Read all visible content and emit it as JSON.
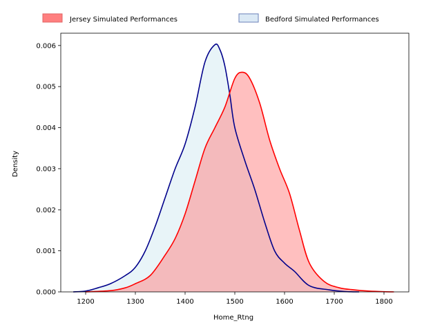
{
  "chart_data": {
    "type": "area",
    "xlabel": "Home_Rtng",
    "ylabel": "Density",
    "xlim": [
      1150,
      1850
    ],
    "ylim": [
      0,
      0.0063
    ],
    "xticks": [
      1200,
      1300,
      1400,
      1500,
      1600,
      1700,
      1800
    ],
    "yticks": [
      "0.000",
      "0.001",
      "0.002",
      "0.003",
      "0.004",
      "0.005",
      "0.006"
    ],
    "legend_position": "top, above plot",
    "grid": false,
    "series": [
      {
        "name": "Jersey Simulated Performances",
        "line_color": "#ff0000",
        "fill_color": "#ff7f7f",
        "x": [
          1200,
          1250,
          1280,
          1300,
          1330,
          1360,
          1380,
          1400,
          1420,
          1440,
          1460,
          1480,
          1500,
          1515,
          1530,
          1550,
          1570,
          1590,
          1610,
          1630,
          1650,
          1680,
          1710,
          1740,
          1770,
          1800,
          1820
        ],
        "y": [
          0,
          3e-05,
          0.0001,
          0.0002,
          0.0004,
          0.0009,
          0.0013,
          0.0019,
          0.0027,
          0.0035,
          0.004,
          0.0045,
          0.0052,
          0.00535,
          0.0052,
          0.0046,
          0.0037,
          0.003,
          0.0024,
          0.0015,
          0.0007,
          0.00025,
          0.0001,
          5e-05,
          2e-05,
          5e-06,
          0
        ]
      },
      {
        "name": "Bedford Simulated Performances",
        "line_color": "#00008b",
        "fill_color": "#add8e6",
        "x": [
          1175,
          1200,
          1225,
          1250,
          1280,
          1300,
          1320,
          1340,
          1360,
          1380,
          1400,
          1420,
          1440,
          1460,
          1470,
          1480,
          1490,
          1500,
          1520,
          1540,
          1560,
          1580,
          1600,
          1620,
          1650,
          1690,
          1720,
          1750
        ],
        "y": [
          0,
          2e-05,
          0.0001,
          0.0002,
          0.0004,
          0.0006,
          0.001,
          0.0016,
          0.0023,
          0.003,
          0.0036,
          0.0045,
          0.0056,
          0.00602,
          0.0059,
          0.0055,
          0.0048,
          0.004,
          0.0032,
          0.0025,
          0.0017,
          0.001,
          0.0007,
          0.0005,
          0.00015,
          5e-05,
          1e-05,
          0
        ]
      }
    ]
  }
}
